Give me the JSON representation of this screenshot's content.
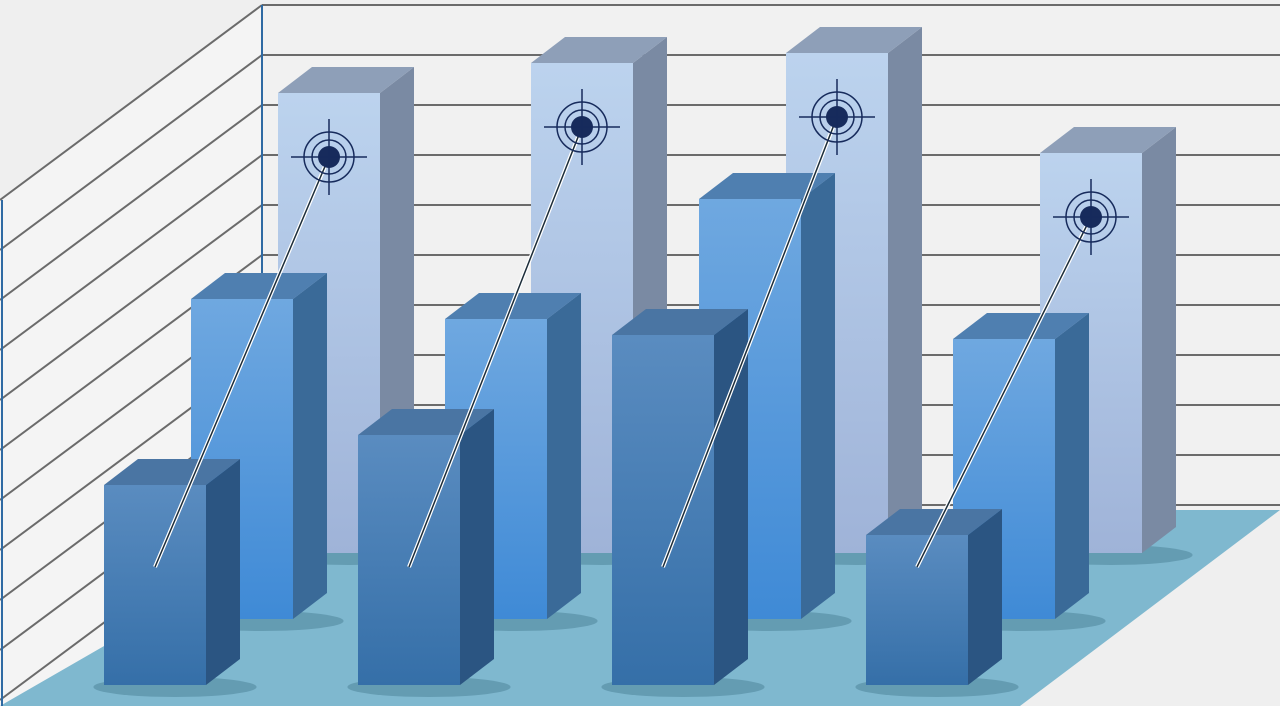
{
  "chart_data": {
    "type": "bar",
    "style": "3d-clustered",
    "categories": [
      "",
      "",
      "",
      ""
    ],
    "series": [
      {
        "values": [
          9.2,
          9.8,
          10.0,
          8.0
        ],
        "color": "#b3cdec",
        "marker": "crosshair-target"
      },
      {
        "values": [
          6.4,
          6.0,
          8.4,
          5.6
        ],
        "color": "#5b9ddc"
      },
      {
        "values": [
          4.0,
          5.0,
          7.0,
          3.0
        ],
        "color": "#4a7fb6"
      }
    ],
    "ylim": [
      0,
      10
    ],
    "grid": true,
    "legend": "none",
    "colors": {
      "background": "#efefef",
      "gridline": "#6b6b6b",
      "floor": "#7fb8cf",
      "axis": "#2f6aa3",
      "target": "#172b5c"
    }
  }
}
